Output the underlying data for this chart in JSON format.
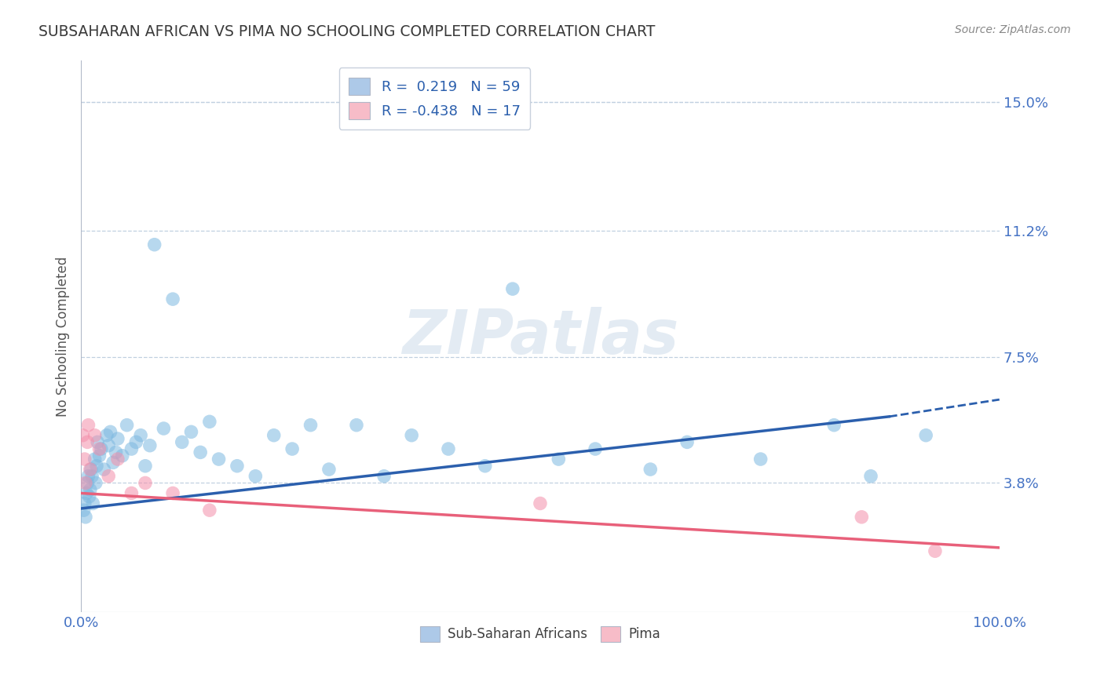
{
  "title": "SUBSAHARAN AFRICAN VS PIMA NO SCHOOLING COMPLETED CORRELATION CHART",
  "source": "Source: ZipAtlas.com",
  "ylabel": "No Schooling Completed",
  "xlim": [
    0,
    100
  ],
  "ylim": [
    0,
    16.2
  ],
  "yticks": [
    3.8,
    7.5,
    11.2,
    15.0
  ],
  "ytick_labels": [
    "3.8%",
    "7.5%",
    "11.2%",
    "15.0%"
  ],
  "top_grid_y": 15.0,
  "legend_entries": [
    {
      "label": "R =  0.219   N = 59",
      "color": "#adc9e8"
    },
    {
      "label": "R = -0.438   N = 17",
      "color": "#f7bcc8"
    }
  ],
  "blue_dot_color": "#7db8e0",
  "pink_dot_color": "#f48faa",
  "blue_line_color": "#2b5fad",
  "pink_line_color": "#e8607a",
  "title_color": "#3a3a3a",
  "axis_label_color": "#555555",
  "tick_color": "#4472c4",
  "source_color": "#888888",
  "background_color": "#ffffff",
  "grid_color": "#c0d0e0",
  "blue_scatter_x": [
    0.3,
    0.4,
    0.5,
    0.6,
    0.7,
    0.8,
    0.9,
    1.0,
    1.1,
    1.2,
    1.3,
    1.5,
    1.6,
    1.7,
    1.8,
    2.0,
    2.2,
    2.5,
    2.8,
    3.0,
    3.2,
    3.5,
    3.8,
    4.0,
    4.5,
    5.0,
    5.5,
    6.0,
    6.5,
    7.0,
    7.5,
    8.0,
    9.0,
    10.0,
    11.0,
    12.0,
    13.0,
    14.0,
    15.0,
    17.0,
    19.0,
    21.0,
    23.0,
    25.0,
    27.0,
    30.0,
    33.0,
    36.0,
    40.0,
    44.0,
    47.0,
    52.0,
    56.0,
    62.0,
    66.0,
    74.0,
    82.0,
    86.0,
    92.0
  ],
  "blue_scatter_y": [
    3.0,
    3.2,
    2.8,
    3.5,
    3.8,
    4.0,
    3.4,
    3.6,
    4.2,
    4.0,
    3.2,
    4.5,
    3.8,
    4.3,
    5.0,
    4.6,
    4.8,
    4.2,
    5.2,
    4.9,
    5.3,
    4.4,
    4.7,
    5.1,
    4.6,
    5.5,
    4.8,
    5.0,
    5.2,
    4.3,
    4.9,
    10.8,
    5.4,
    9.2,
    5.0,
    5.3,
    4.7,
    5.6,
    4.5,
    4.3,
    4.0,
    5.2,
    4.8,
    5.5,
    4.2,
    5.5,
    4.0,
    5.2,
    4.8,
    4.3,
    9.5,
    4.5,
    4.8,
    4.2,
    5.0,
    4.5,
    5.5,
    4.0,
    5.2
  ],
  "pink_scatter_x": [
    0.2,
    0.4,
    0.5,
    0.7,
    0.8,
    1.0,
    1.5,
    2.0,
    3.0,
    4.0,
    5.5,
    7.0,
    10.0,
    14.0,
    50.0,
    85.0,
    93.0
  ],
  "pink_scatter_y": [
    5.2,
    4.5,
    3.8,
    5.0,
    5.5,
    4.2,
    5.2,
    4.8,
    4.0,
    4.5,
    3.5,
    3.8,
    3.5,
    3.0,
    3.2,
    2.8,
    1.8
  ],
  "blue_line_x0": 0,
  "blue_line_x1": 88,
  "blue_line_y0": 3.05,
  "blue_line_y1": 5.75,
  "blue_dash_x0": 88,
  "blue_dash_x1": 100,
  "blue_dash_y0": 5.75,
  "blue_dash_y1": 6.25,
  "pink_line_x0": 0,
  "pink_line_x1": 100,
  "pink_line_y0": 3.5,
  "pink_line_y1": 1.9
}
